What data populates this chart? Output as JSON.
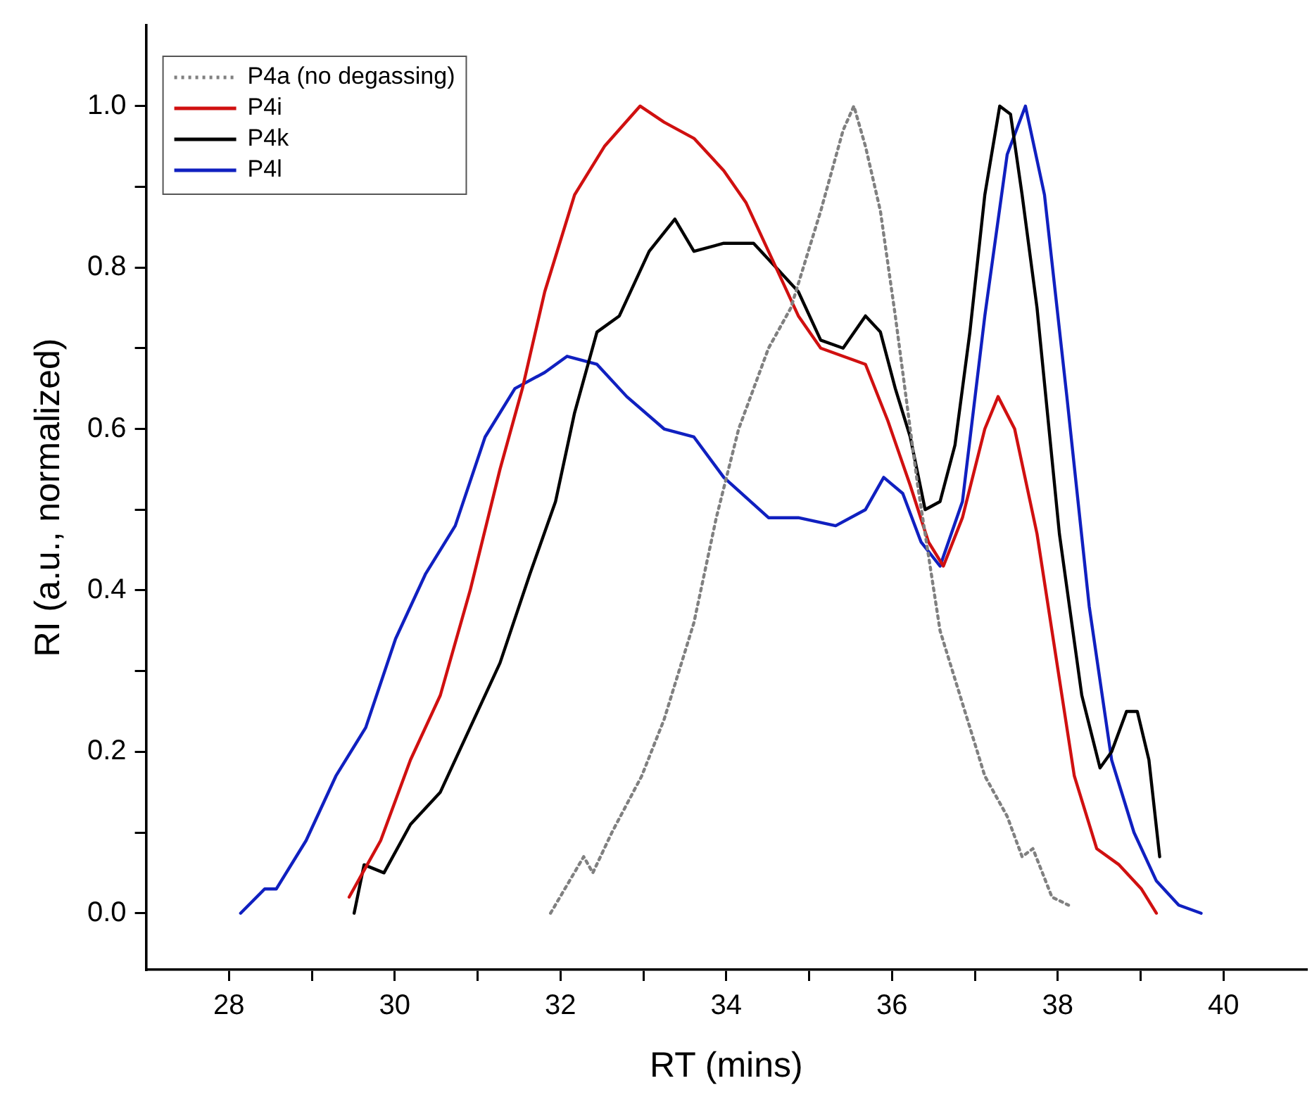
{
  "chart_data": {
    "type": "line",
    "xlabel": "RT (mins)",
    "ylabel": "RI (a.u., normalized)",
    "xlim": [
      27,
      41
    ],
    "ylim": [
      -0.07,
      1.1
    ],
    "xticks": [
      28,
      {
        "value": 29,
        "label": null
      },
      30,
      {
        "value": 31,
        "label": null
      },
      32,
      {
        "value": 33,
        "label": null
      },
      34,
      {
        "value": 35,
        "label": null
      },
      36,
      {
        "value": 37,
        "label": null
      },
      38,
      {
        "value": 39,
        "label": null
      },
      40
    ],
    "yticks": [
      {
        "value": 0,
        "label": "0.0"
      },
      {
        "value": 0.1,
        "label": null
      },
      {
        "value": 0.2,
        "label": "0.2"
      },
      {
        "value": 0.3,
        "label": null
      },
      {
        "value": 0.4,
        "label": "0.4"
      },
      {
        "value": 0.5,
        "label": null
      },
      {
        "value": 0.6,
        "label": "0.6"
      },
      {
        "value": 0.7,
        "label": null
      },
      {
        "value": 0.8,
        "label": "0.8"
      },
      {
        "value": 0.9,
        "label": null
      },
      {
        "value": 1,
        "label": "1.0"
      }
    ],
    "grid": false,
    "legend": "top left",
    "marker": "none",
    "series": [
      {
        "name": "P4a (no degassing)",
        "color": "#808080",
        "line_style": "dotted",
        "x": [
          31.88,
          32.28,
          32.39,
          32.62,
          32.98,
          33.25,
          33.61,
          33.88,
          34.15,
          34.51,
          34.78,
          35.14,
          35.41,
          35.54,
          35.68,
          35.86,
          36.04,
          36.31,
          36.58,
          36.85,
          37.12,
          37.39,
          37.57,
          37.7,
          37.93,
          38.13
        ],
        "values": [
          0.0,
          0.07,
          0.05,
          0.1,
          0.17,
          0.24,
          0.36,
          0.49,
          0.6,
          0.7,
          0.75,
          0.87,
          0.97,
          1.0,
          0.95,
          0.87,
          0.74,
          0.53,
          0.35,
          0.26,
          0.17,
          0.12,
          0.07,
          0.08,
          0.02,
          0.01
        ]
      },
      {
        "name": "P4i",
        "color": "#d01010",
        "line_style": "solid",
        "x": [
          29.45,
          29.83,
          30.19,
          30.55,
          30.91,
          31.27,
          31.54,
          31.81,
          32.17,
          32.53,
          32.96,
          33.25,
          33.61,
          33.97,
          34.24,
          34.51,
          34.87,
          35.14,
          35.41,
          35.68,
          35.95,
          36.22,
          36.44,
          36.62,
          36.85,
          37.12,
          37.28,
          37.48,
          37.75,
          38.02,
          38.2,
          38.47,
          38.74,
          39.01,
          39.19
        ],
        "values": [
          0.02,
          0.09,
          0.19,
          0.27,
          0.4,
          0.55,
          0.65,
          0.77,
          0.89,
          0.95,
          1.0,
          0.98,
          0.96,
          0.92,
          0.88,
          0.82,
          0.74,
          0.7,
          0.69,
          0.68,
          0.61,
          0.53,
          0.46,
          0.43,
          0.49,
          0.6,
          0.64,
          0.6,
          0.47,
          0.29,
          0.17,
          0.08,
          0.06,
          0.03,
          0.0
        ]
      },
      {
        "name": "P4k",
        "color": "#000000",
        "line_style": "solid",
        "x": [
          29.51,
          29.63,
          29.87,
          30.19,
          30.55,
          30.91,
          31.27,
          31.63,
          31.94,
          32.17,
          32.44,
          32.71,
          33.07,
          33.38,
          33.61,
          33.97,
          34.33,
          34.6,
          34.87,
          35.14,
          35.41,
          35.68,
          35.86,
          36.04,
          36.22,
          36.4,
          36.58,
          36.76,
          36.94,
          37.12,
          37.3,
          37.43,
          37.57,
          37.75,
          38.02,
          38.29,
          38.51,
          38.65,
          38.83,
          38.96,
          39.1,
          39.23
        ],
        "values": [
          0.0,
          0.06,
          0.05,
          0.11,
          0.15,
          0.23,
          0.31,
          0.42,
          0.51,
          0.62,
          0.72,
          0.74,
          0.82,
          0.86,
          0.82,
          0.83,
          0.83,
          0.8,
          0.77,
          0.71,
          0.7,
          0.74,
          0.72,
          0.65,
          0.59,
          0.5,
          0.51,
          0.58,
          0.72,
          0.89,
          1.0,
          0.99,
          0.89,
          0.75,
          0.47,
          0.27,
          0.18,
          0.2,
          0.25,
          0.25,
          0.19,
          0.07
        ]
      },
      {
        "name": "P4l",
        "color": "#1020c0",
        "line_style": "solid",
        "x": [
          28.14,
          28.43,
          28.57,
          28.93,
          29.29,
          29.65,
          30.01,
          30.37,
          30.73,
          31.09,
          31.45,
          31.81,
          32.08,
          32.44,
          32.8,
          33.25,
          33.61,
          33.97,
          34.51,
          34.87,
          35.32,
          35.68,
          35.9,
          36.13,
          36.35,
          36.58,
          36.85,
          37.12,
          37.39,
          37.61,
          37.84,
          38.11,
          38.38,
          38.65,
          38.92,
          39.19,
          39.46,
          39.73
        ],
        "values": [
          0.0,
          0.03,
          0.03,
          0.09,
          0.17,
          0.23,
          0.34,
          0.42,
          0.48,
          0.59,
          0.65,
          0.67,
          0.69,
          0.68,
          0.64,
          0.6,
          0.59,
          0.54,
          0.49,
          0.49,
          0.48,
          0.5,
          0.54,
          0.52,
          0.46,
          0.43,
          0.51,
          0.74,
          0.94,
          1.0,
          0.89,
          0.64,
          0.38,
          0.19,
          0.1,
          0.04,
          0.01,
          0.0
        ]
      }
    ]
  }
}
